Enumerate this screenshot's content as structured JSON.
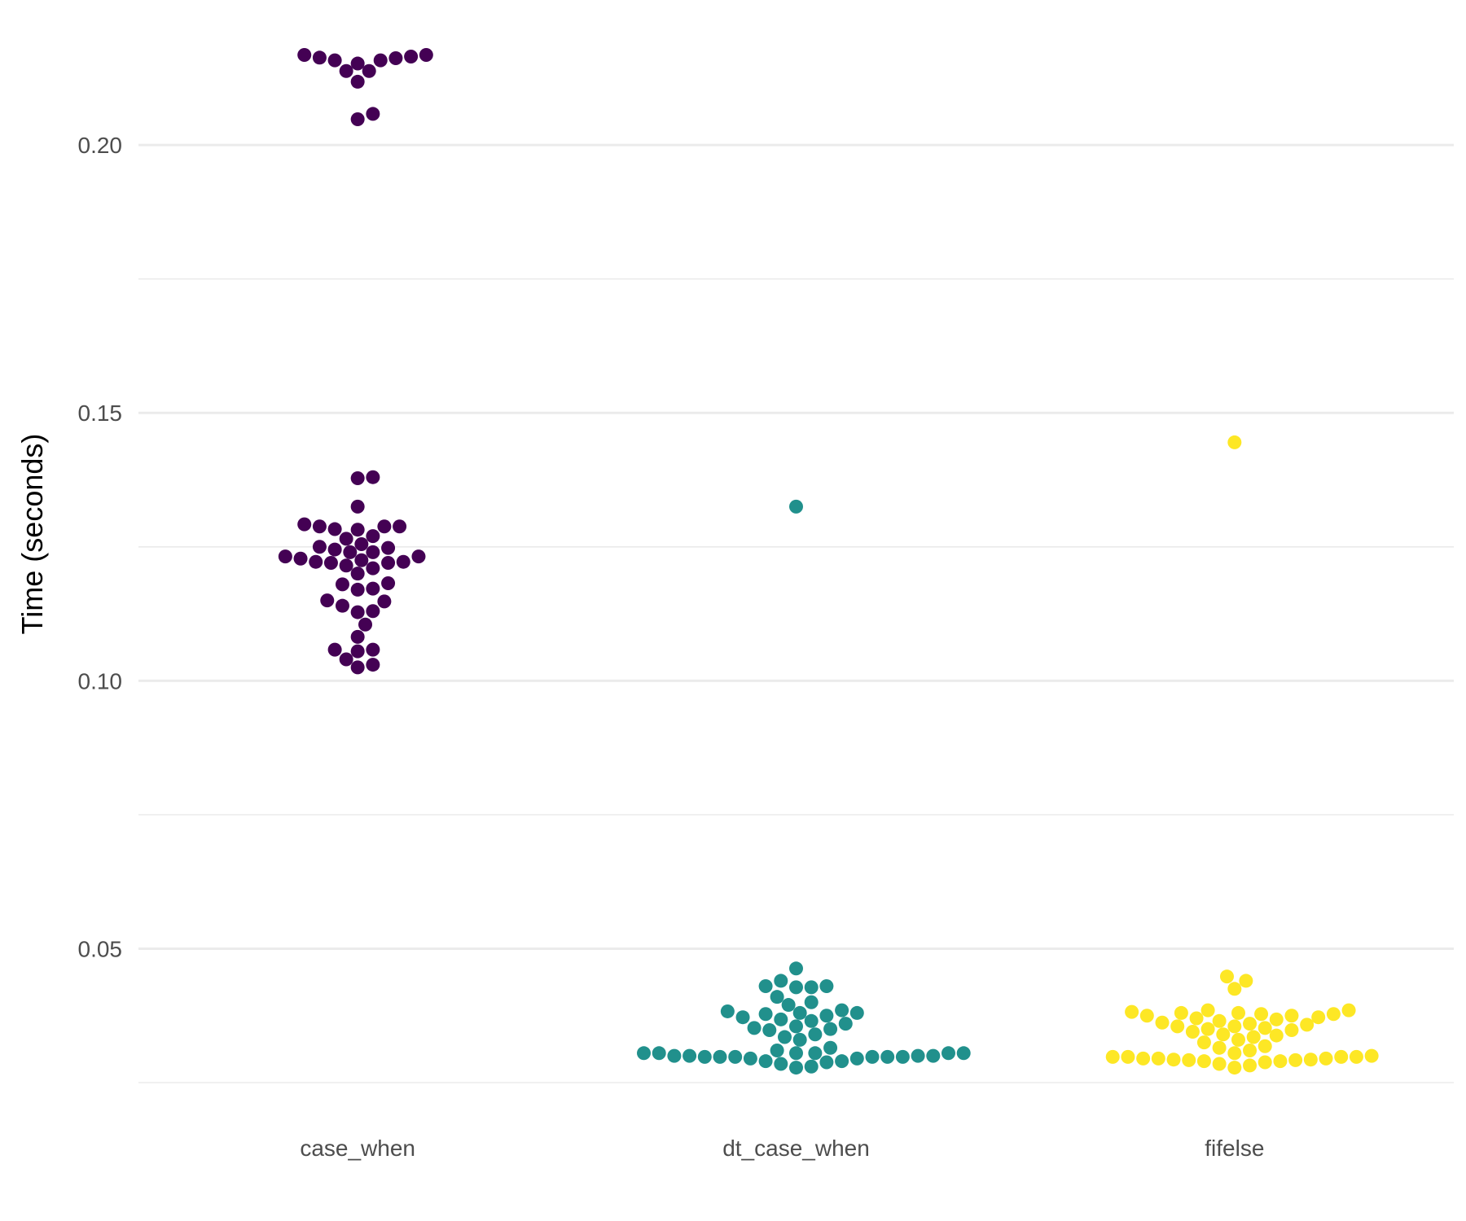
{
  "chart_data": {
    "type": "scatter",
    "subtype": "beeswarm",
    "title": "",
    "xlabel": "",
    "ylabel": "Time (seconds)",
    "ylim": [
      0.025,
      0.2225
    ],
    "y_ticks": [
      0.05,
      0.1,
      0.15,
      0.2
    ],
    "y_tick_labels": [
      "0.05",
      "0.10",
      "0.15",
      "0.20"
    ],
    "grid": true,
    "legend": "none",
    "categories": [
      "case_when",
      "dt_case_when",
      "fifelse"
    ],
    "series": [
      {
        "category": "case_when",
        "color": "#440154",
        "values": [
          0.2165,
          0.2163,
          0.2158,
          0.2158,
          0.2152,
          0.2162,
          0.2168,
          0.2168,
          0.2138,
          0.2138,
          0.2118,
          0.2048,
          0.2058,
          0.1378,
          0.138,
          0.1325,
          0.1288,
          0.1288,
          0.1282,
          0.1283,
          0.1288,
          0.1292,
          0.127,
          0.1265,
          0.1255,
          0.125,
          0.1248,
          0.124,
          0.1245,
          0.124,
          0.1232,
          0.1232,
          0.1228,
          0.1225,
          0.1222,
          0.122,
          0.1222,
          0.122,
          0.1215,
          0.121,
          0.12,
          0.1182,
          0.118,
          0.1172,
          0.117,
          0.115,
          0.1148,
          0.114,
          0.113,
          0.1128,
          0.1105,
          0.1082,
          0.1058,
          0.1055,
          0.1058,
          0.104,
          0.103,
          0.1025
        ]
      },
      {
        "category": "dt_case_when",
        "color": "#21908C",
        "values": [
          0.1325,
          0.0463,
          0.044,
          0.043,
          0.043,
          0.0428,
          0.0428,
          0.041,
          0.04,
          0.0395,
          0.0385,
          0.0383,
          0.038,
          0.038,
          0.0378,
          0.0375,
          0.0372,
          0.0368,
          0.0365,
          0.036,
          0.0355,
          0.0352,
          0.035,
          0.0348,
          0.034,
          0.0335,
          0.033,
          0.0315,
          0.031,
          0.0305,
          0.0305,
          0.0305,
          0.0305,
          0.0305,
          0.0305,
          0.03,
          0.03,
          0.03,
          0.03,
          0.0298,
          0.0298,
          0.0298,
          0.0298,
          0.0298,
          0.0298,
          0.0295,
          0.0295,
          0.029,
          0.029,
          0.0288,
          0.0285,
          0.028,
          0.0278
        ]
      },
      {
        "category": "fifelse",
        "color": "#FDE725",
        "values": [
          0.1445,
          0.0448,
          0.044,
          0.0425,
          0.0385,
          0.0385,
          0.0382,
          0.038,
          0.038,
          0.0378,
          0.0378,
          0.0375,
          0.0375,
          0.0372,
          0.037,
          0.0368,
          0.0365,
          0.0362,
          0.036,
          0.0358,
          0.0355,
          0.0355,
          0.0352,
          0.035,
          0.0348,
          0.0345,
          0.034,
          0.0338,
          0.0335,
          0.033,
          0.0325,
          0.0318,
          0.0315,
          0.031,
          0.0305,
          0.03,
          0.0298,
          0.0298,
          0.0298,
          0.0298,
          0.0295,
          0.0295,
          0.0295,
          0.0293,
          0.0293,
          0.0292,
          0.0292,
          0.029,
          0.029,
          0.0288,
          0.0285,
          0.0282,
          0.0278
        ]
      }
    ]
  }
}
